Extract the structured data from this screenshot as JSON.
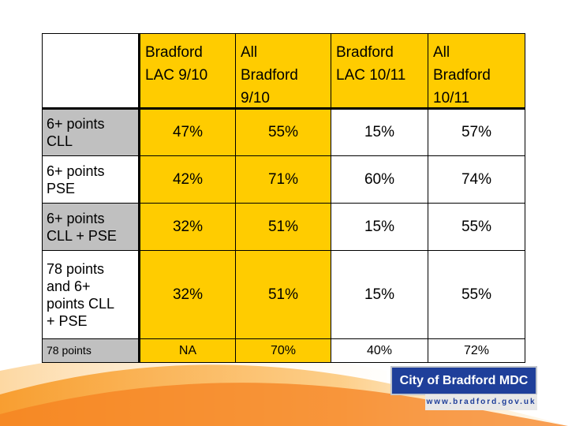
{
  "table": {
    "headers": [
      "Bradford LAC 9/10",
      "All Bradford 9/10",
      "Bradford LAC 10/11",
      "All Bradford 10/11"
    ],
    "header_lines": [
      [
        "Bradford",
        "LAC 9/10"
      ],
      [
        "All",
        "Bradford",
        "9/10"
      ],
      [
        "Bradford",
        "LAC 10/11"
      ],
      [
        "All",
        "Bradford",
        "10/11"
      ]
    ],
    "rows": [
      {
        "label_lines": [
          "6+ points",
          "CLL"
        ],
        "values": [
          "47%",
          "55%",
          "15%",
          "57%"
        ]
      },
      {
        "label_lines": [
          "6+ points",
          "PSE"
        ],
        "values": [
          "42%",
          "71%",
          "60%",
          "74%"
        ]
      },
      {
        "label_lines": [
          "6+ points",
          "CLL + PSE"
        ],
        "values": [
          "32%",
          "51%",
          "15%",
          "55%"
        ]
      },
      {
        "label_lines": [
          "78 points",
          "and 6+",
          "points CLL",
          "+ PSE"
        ],
        "values": [
          "32%",
          "51%",
          "15%",
          "55%"
        ]
      },
      {
        "label_lines": [
          "78 points"
        ],
        "values": [
          "NA",
          "70%",
          "40%",
          "72%"
        ]
      }
    ]
  },
  "logo": {
    "name": "City of Bradford MDC",
    "url": "www.bradford.gov.uk"
  },
  "colors": {
    "header_yellow": "#ffcc00",
    "label_grey": "#c0c0c0",
    "swoosh_orange": "#f7941d",
    "logo_blue": "#1f3f9a"
  }
}
